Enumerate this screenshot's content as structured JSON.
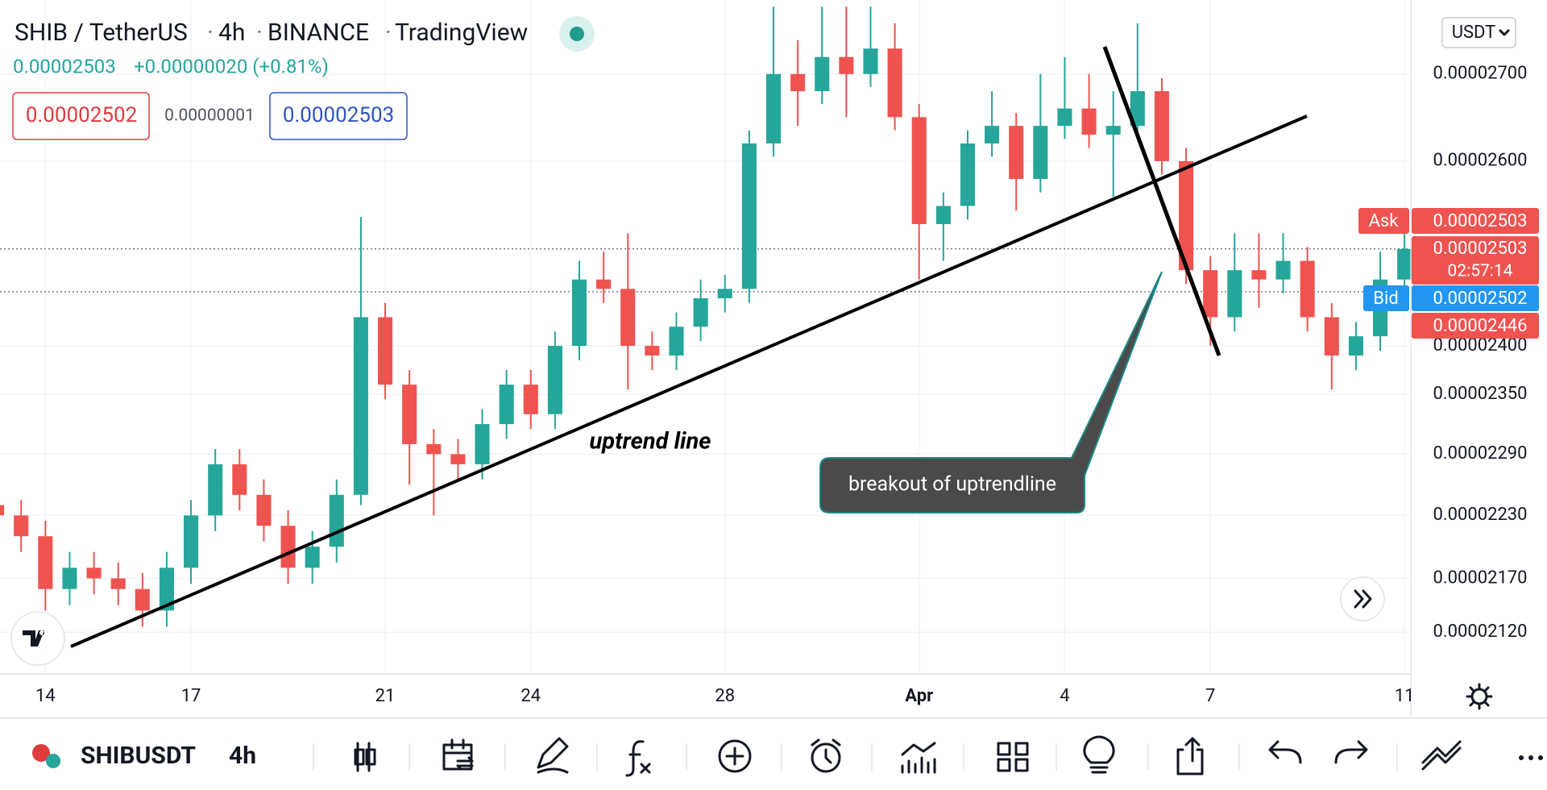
{
  "header": {
    "symbol": "SHIB / TetherUS",
    "interval": "4h",
    "exchange": "BINANCE",
    "source": "TradingView",
    "last": "0.00002503",
    "change": "+0.00000020 (+0.81%)",
    "sell": "0.00002502",
    "spread": "0.00000001",
    "buy": "0.00002503",
    "currency": "USDT"
  },
  "toolbar": {
    "symbol": "SHIBUSDT",
    "interval": "4h"
  },
  "chart_data": {
    "type": "candlestick",
    "log_scale": true,
    "grid": true,
    "up_color": "#26a69a",
    "down_color": "#ef5350",
    "annotations": [
      "uptrend line",
      "breakout of uptrendline"
    ],
    "price_labels": {
      "ask_tag": "Ask",
      "ask": "0.00002503",
      "last": "0.00002503",
      "countdown": "02:57:14",
      "bid_tag": "Bid",
      "bid": "0.00002502",
      "low_mark": "0.00002446"
    },
    "price_lines": [
      2.503e-05,
      2.457e-05
    ],
    "xlim": [
      0.13,
      58.26
    ],
    "xticks": [
      {
        "value": 2,
        "label": "14"
      },
      {
        "value": 8,
        "label": "17"
      },
      {
        "value": 16,
        "label": "21"
      },
      {
        "value": 22,
        "label": "24"
      },
      {
        "value": 30,
        "label": "28"
      },
      {
        "value": 38,
        "label": "Apr"
      },
      {
        "value": 44,
        "label": "4"
      },
      {
        "value": 50,
        "label": "7"
      },
      {
        "value": 58,
        "label": "11"
      }
    ],
    "ylim": [
      2.082e-05,
      2.788e-05
    ],
    "yticks": [
      {
        "value": 2.7e-05,
        "label": "0.00002700"
      },
      {
        "value": 2.6e-05,
        "label": "0.00002600"
      },
      {
        "value": 2.4e-05,
        "label": "0.00002400"
      },
      {
        "value": 2.35e-05,
        "label": "0.00002350"
      },
      {
        "value": 2.29e-05,
        "label": "0.00002290"
      },
      {
        "value": 2.23e-05,
        "label": "0.00002230"
      },
      {
        "value": 2.17e-05,
        "label": "0.00002170"
      },
      {
        "value": 2.12e-05,
        "label": "0.00002120"
      }
    ],
    "open": [
      2.24e-05,
      2.23e-05,
      2.21e-05,
      2.16e-05,
      2.18e-05,
      2.17e-05,
      2.16e-05,
      2.14e-05,
      2.18e-05,
      2.23e-05,
      2.28e-05,
      2.25e-05,
      2.22e-05,
      2.18e-05,
      2.2e-05,
      2.25e-05,
      2.43e-05,
      2.36e-05,
      2.3e-05,
      2.29e-05,
      2.28e-05,
      2.32e-05,
      2.36e-05,
      2.33e-05,
      2.4e-05,
      2.47e-05,
      2.46e-05,
      2.4e-05,
      2.39e-05,
      2.42e-05,
      2.45e-05,
      2.46e-05,
      2.62e-05,
      2.7e-05,
      2.68e-05,
      2.72e-05,
      2.7e-05,
      2.73e-05,
      2.65e-05,
      2.53e-05,
      2.55e-05,
      2.62e-05,
      2.64e-05,
      2.58e-05,
      2.64e-05,
      2.66e-05,
      2.63e-05,
      2.64e-05,
      2.68e-05,
      2.6e-05,
      2.48e-05,
      2.43e-05,
      2.48e-05,
      2.47e-05,
      2.49e-05,
      2.43e-05,
      2.39e-05,
      2.41e-05,
      2.47e-05
    ],
    "high": [
      2.255e-05,
      2.245e-05,
      2.225e-05,
      2.195e-05,
      2.195e-05,
      2.185e-05,
      2.175e-05,
      2.195e-05,
      2.245e-05,
      2.295e-05,
      2.295e-05,
      2.265e-05,
      2.235e-05,
      2.215e-05,
      2.265e-05,
      2.538e-05,
      2.445e-05,
      2.375e-05,
      2.315e-05,
      2.305e-05,
      2.335e-05,
      2.375e-05,
      2.375e-05,
      2.415e-05,
      2.49e-05,
      2.5e-05,
      2.52e-05,
      2.415e-05,
      2.435e-05,
      2.47e-05,
      2.475e-05,
      2.635e-05,
      2.78e-05,
      2.74e-05,
      2.78e-05,
      2.78e-05,
      2.78e-05,
      2.76e-05,
      2.665e-05,
      2.565e-05,
      2.635e-05,
      2.68e-05,
      2.655e-05,
      2.7e-05,
      2.72e-05,
      2.7e-05,
      2.68e-05,
      2.76e-05,
      2.695e-05,
      2.615e-05,
      2.495e-05,
      2.52e-05,
      2.52e-05,
      2.52e-05,
      2.505e-05,
      2.445e-05,
      2.425e-05,
      2.5e-05,
      2.53e-05
    ],
    "low": [
      2.215e-05,
      2.195e-05,
      2.14e-05,
      2.145e-05,
      2.155e-05,
      2.145e-05,
      2.125e-05,
      2.125e-05,
      2.165e-05,
      2.215e-05,
      2.235e-05,
      2.205e-05,
      2.165e-05,
      2.165e-05,
      2.185e-05,
      2.24e-05,
      2.345e-05,
      2.26e-05,
      2.23e-05,
      2.265e-05,
      2.265e-05,
      2.305e-05,
      2.315e-05,
      2.315e-05,
      2.385e-05,
      2.445e-05,
      2.355e-05,
      2.375e-05,
      2.375e-05,
      2.405e-05,
      2.435e-05,
      2.445e-05,
      2.605e-05,
      2.64e-05,
      2.665e-05,
      2.65e-05,
      2.685e-05,
      2.635e-05,
      2.47e-05,
      2.49e-05,
      2.535e-05,
      2.605e-05,
      2.545e-05,
      2.565e-05,
      2.625e-05,
      2.615e-05,
      2.56e-05,
      2.625e-05,
      2.585e-05,
      2.465e-05,
      2.4e-05,
      2.415e-05,
      2.44e-05,
      2.455e-05,
      2.415e-05,
      2.355e-05,
      2.375e-05,
      2.395e-05,
      2.455e-05
    ],
    "close": [
      2.23e-05,
      2.21e-05,
      2.16e-05,
      2.18e-05,
      2.17e-05,
      2.16e-05,
      2.14e-05,
      2.18e-05,
      2.23e-05,
      2.28e-05,
      2.25e-05,
      2.22e-05,
      2.18e-05,
      2.2e-05,
      2.25e-05,
      2.43e-05,
      2.36e-05,
      2.3e-05,
      2.29e-05,
      2.28e-05,
      2.32e-05,
      2.36e-05,
      2.33e-05,
      2.4e-05,
      2.47e-05,
      2.46e-05,
      2.4e-05,
      2.39e-05,
      2.42e-05,
      2.45e-05,
      2.46e-05,
      2.62e-05,
      2.7e-05,
      2.68e-05,
      2.72e-05,
      2.7e-05,
      2.73e-05,
      2.65e-05,
      2.53e-05,
      2.55e-05,
      2.62e-05,
      2.64e-05,
      2.58e-05,
      2.64e-05,
      2.66e-05,
      2.63e-05,
      2.64e-05,
      2.68e-05,
      2.6e-05,
      2.48e-05,
      2.43e-05,
      2.48e-05,
      2.47e-05,
      2.49e-05,
      2.43e-05,
      2.39e-05,
      2.41e-05,
      2.47e-05,
      2.503e-05
    ]
  }
}
